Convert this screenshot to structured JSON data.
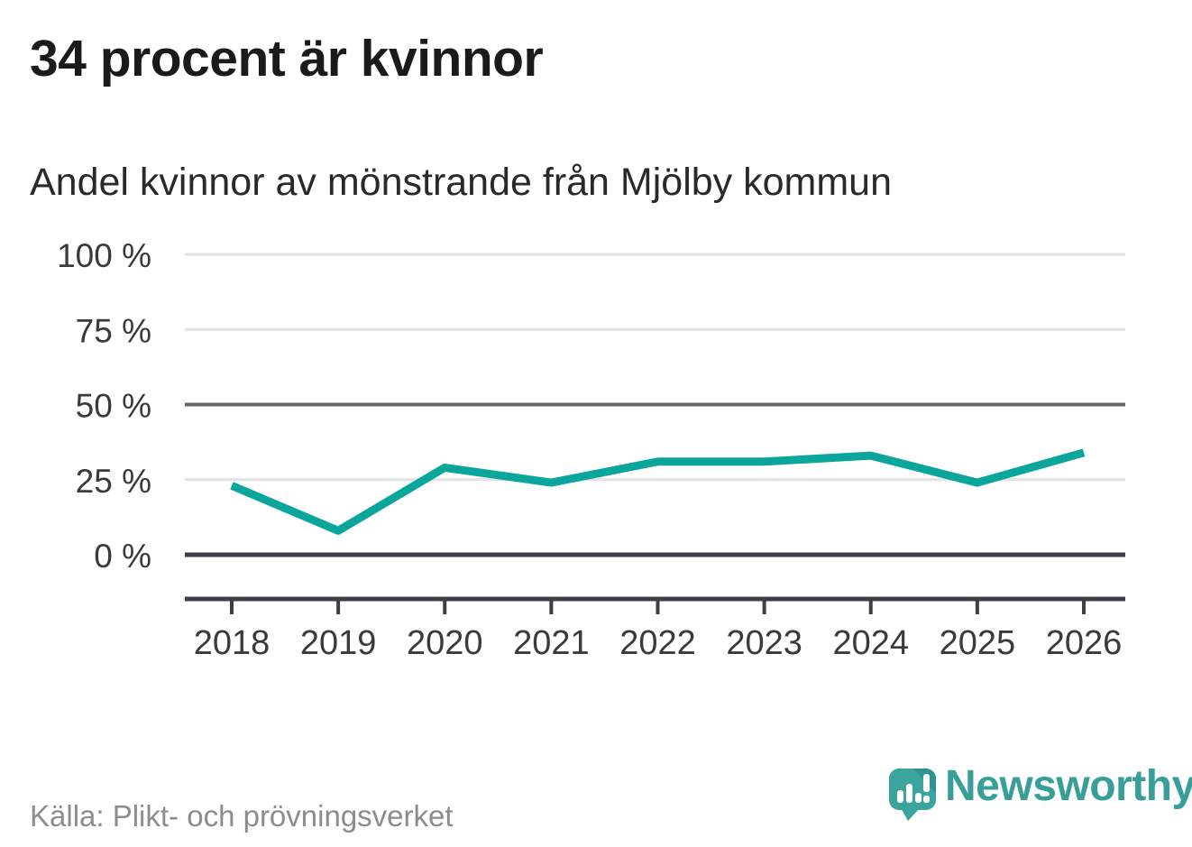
{
  "header": {
    "title": "34 procent är kvinnor",
    "subtitle": "Andel kvinnor av mönstrande från Mjölby kommun"
  },
  "chart_data": {
    "type": "line",
    "title": "34 procent är kvinnor",
    "subtitle": "Andel kvinnor av mönstrande från Mjölby kommun",
    "x": [
      "2018",
      "2019",
      "2020",
      "2021",
      "2022",
      "2023",
      "2024",
      "2025",
      "2026"
    ],
    "series": [
      {
        "name": "Andel kvinnor av mönstrande",
        "unit": "%",
        "values": [
          23,
          8,
          29,
          24,
          31,
          31,
          33,
          24,
          34
        ]
      }
    ],
    "ylim": [
      0,
      100
    ],
    "yticks": [
      {
        "value": 100,
        "label": "100 %",
        "emphasis": "light"
      },
      {
        "value": 75,
        "label": "75 %",
        "emphasis": "light"
      },
      {
        "value": 50,
        "label": "50 %",
        "emphasis": "mid"
      },
      {
        "value": 25,
        "label": "25 %",
        "emphasis": "light"
      },
      {
        "value": 0,
        "label": "0 %",
        "emphasis": "dark"
      }
    ],
    "grid": true,
    "legend": "none",
    "colors": {
      "line": "#0aa59b",
      "grid_light": "#e2e2e2",
      "grid_mid": "#65656d",
      "axis_dark": "#3e3e44",
      "tick_label": "#3a3a3a"
    }
  },
  "footer": {
    "source": "Källa: Plikt- och prövningsverket"
  },
  "branding": {
    "wordmark": "Newsworthy",
    "logo_icon": "speech-bubble-bar-chart-exclamation",
    "brand_color": "#389e98"
  }
}
